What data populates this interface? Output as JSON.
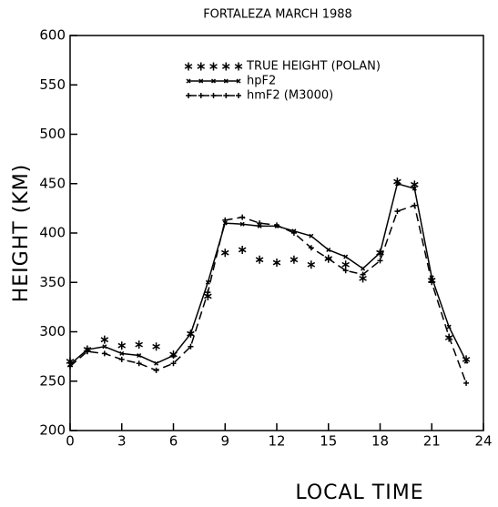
{
  "chart_data": {
    "type": "line",
    "title": "FORTALEZA MARCH 1988",
    "xlabel": "LOCAL TIME",
    "ylabel": "HEIGHT (KM)",
    "x": [
      0,
      1,
      2,
      3,
      4,
      5,
      6,
      7,
      8,
      9,
      10,
      11,
      12,
      13,
      14,
      15,
      16,
      17,
      18,
      19,
      20,
      21,
      22,
      23
    ],
    "series": [
      {
        "name": "TRUE HEIGHT (POLAN)",
        "color": "#000000",
        "line_style": "none",
        "marker": "asterisk",
        "values": [
          270,
          282,
          292,
          286,
          287,
          285,
          277,
          298,
          336,
          380,
          383,
          373,
          370,
          373,
          368,
          374,
          368,
          354,
          380,
          452,
          449,
          352,
          294,
          272
        ]
      },
      {
        "name": "hpF2",
        "color": "#000000",
        "line_style": "solid",
        "marker": "cross",
        "values": [
          267,
          282,
          285,
          278,
          276,
          268,
          276,
          298,
          350,
          410,
          409,
          407,
          407,
          402,
          397,
          383,
          376,
          364,
          380,
          450,
          445,
          355,
          305,
          270
        ]
      },
      {
        "name": "hmF2 (M3000)",
        "color": "#000000",
        "line_style": "dashed",
        "marker": "plus",
        "values": [
          265,
          280,
          278,
          272,
          268,
          261,
          268,
          285,
          340,
          413,
          416,
          410,
          408,
          400,
          385,
          374,
          362,
          358,
          372,
          422,
          428,
          350,
          295,
          248
        ]
      }
    ],
    "xlim": [
      0,
      24
    ],
    "xticks": [
      0,
      3,
      6,
      9,
      12,
      15,
      18,
      21,
      24
    ],
    "ylim": [
      200,
      600
    ],
    "yticks": [
      200,
      250,
      300,
      350,
      400,
      450,
      500,
      550,
      600
    ]
  }
}
